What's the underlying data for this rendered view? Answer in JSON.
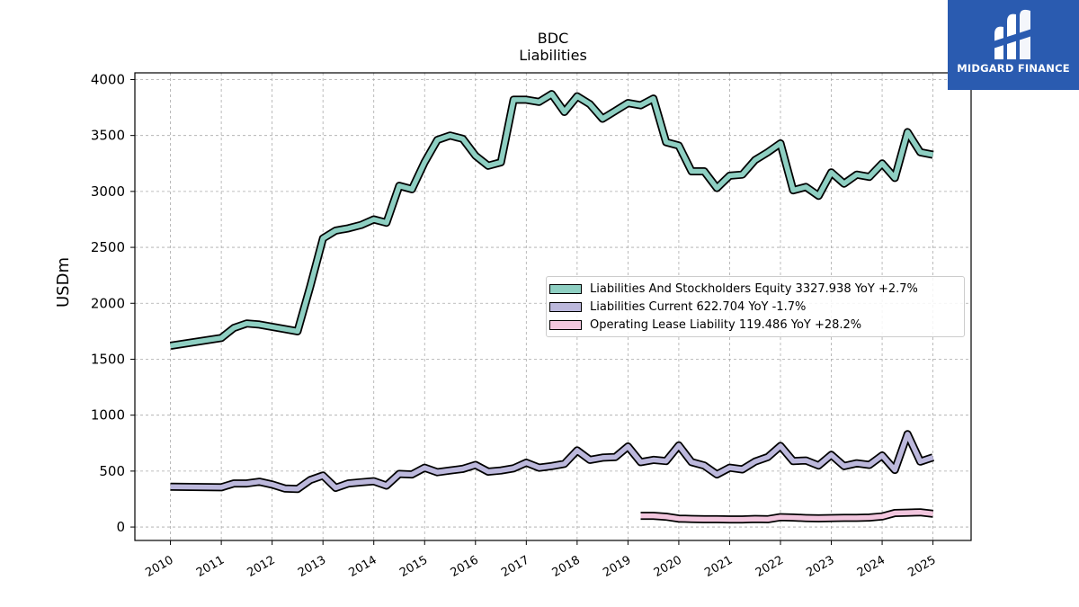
{
  "header": {
    "ticker": "BDC",
    "subtitle": "Liabilities"
  },
  "logo": {
    "text": "MIDGARD FINANCE",
    "icon": "midgard-logo-icon",
    "bg_color": "#2a5bb0"
  },
  "chart_data": {
    "type": "line",
    "title": "BDC",
    "subtitle": "Liabilities",
    "ylabel": "USDm",
    "xlabel": "",
    "xlim": [
      2009.3,
      2025.75
    ],
    "ylim": [
      -120,
      4060
    ],
    "x_ticks": [
      "2010",
      "2011",
      "2012",
      "2013",
      "2014",
      "2015",
      "2016",
      "2017",
      "2018",
      "2019",
      "2020",
      "2021",
      "2022",
      "2023",
      "2024",
      "2025"
    ],
    "y_ticks": [
      0,
      500,
      1000,
      1500,
      2000,
      2500,
      3000,
      3500,
      4000
    ],
    "grid": true,
    "legend_position": "right-middle",
    "series": [
      {
        "name": "Liabilities And Stockholders Equity",
        "legend_label": "Liabilities And Stockholders Equity  3327.938 YoY +2.7%",
        "color": "#8ecfc2",
        "points": [
          [
            2010.0,
            1620
          ],
          [
            2011.0,
            1690
          ],
          [
            2011.25,
            1780
          ],
          [
            2011.5,
            1820
          ],
          [
            2011.75,
            1810
          ],
          [
            2012.0,
            1790
          ],
          [
            2012.25,
            1770
          ],
          [
            2012.5,
            1750
          ],
          [
            2012.75,
            2150
          ],
          [
            2013.0,
            2580
          ],
          [
            2013.25,
            2650
          ],
          [
            2013.5,
            2670
          ],
          [
            2013.75,
            2700
          ],
          [
            2014.0,
            2750
          ],
          [
            2014.25,
            2720
          ],
          [
            2014.5,
            3050
          ],
          [
            2014.75,
            3020
          ],
          [
            2015.0,
            3260
          ],
          [
            2015.25,
            3460
          ],
          [
            2015.5,
            3500
          ],
          [
            2015.75,
            3470
          ],
          [
            2016.0,
            3320
          ],
          [
            2016.25,
            3230
          ],
          [
            2016.5,
            3260
          ],
          [
            2016.75,
            3820
          ],
          [
            2017.0,
            3820
          ],
          [
            2017.25,
            3800
          ],
          [
            2017.5,
            3870
          ],
          [
            2017.75,
            3710
          ],
          [
            2018.0,
            3850
          ],
          [
            2018.25,
            3780
          ],
          [
            2018.5,
            3650
          ],
          [
            2018.75,
            3720
          ],
          [
            2019.0,
            3790
          ],
          [
            2019.25,
            3770
          ],
          [
            2019.5,
            3830
          ],
          [
            2019.75,
            3440
          ],
          [
            2020.0,
            3410
          ],
          [
            2020.25,
            3180
          ],
          [
            2020.5,
            3180
          ],
          [
            2020.75,
            3030
          ],
          [
            2021.0,
            3140
          ],
          [
            2021.25,
            3150
          ],
          [
            2021.5,
            3280
          ],
          [
            2021.75,
            3350
          ],
          [
            2022.0,
            3430
          ],
          [
            2022.25,
            3010
          ],
          [
            2022.5,
            3040
          ],
          [
            2022.75,
            2960
          ],
          [
            2023.0,
            3170
          ],
          [
            2023.25,
            3070
          ],
          [
            2023.5,
            3150
          ],
          [
            2023.75,
            3130
          ],
          [
            2024.0,
            3250
          ],
          [
            2024.25,
            3120
          ],
          [
            2024.5,
            3530
          ],
          [
            2024.75,
            3350
          ],
          [
            2025.0,
            3328
          ]
        ]
      },
      {
        "name": "Liabilities Current",
        "legend_label": "Liabilities Current  622.704 YoY -1.7%",
        "color": "#bcb8dc",
        "points": [
          [
            2010.0,
            360
          ],
          [
            2011.0,
            355
          ],
          [
            2011.25,
            390
          ],
          [
            2011.5,
            390
          ],
          [
            2011.75,
            405
          ],
          [
            2012.0,
            380
          ],
          [
            2012.25,
            345
          ],
          [
            2012.5,
            340
          ],
          [
            2012.75,
            420
          ],
          [
            2013.0,
            460
          ],
          [
            2013.25,
            350
          ],
          [
            2013.5,
            390
          ],
          [
            2013.75,
            400
          ],
          [
            2014.0,
            410
          ],
          [
            2014.25,
            370
          ],
          [
            2014.5,
            475
          ],
          [
            2014.75,
            470
          ],
          [
            2015.0,
            530
          ],
          [
            2015.25,
            490
          ],
          [
            2015.5,
            505
          ],
          [
            2015.75,
            520
          ],
          [
            2016.0,
            555
          ],
          [
            2016.25,
            495
          ],
          [
            2016.5,
            505
          ],
          [
            2016.75,
            525
          ],
          [
            2017.0,
            575
          ],
          [
            2017.25,
            530
          ],
          [
            2017.5,
            545
          ],
          [
            2017.75,
            565
          ],
          [
            2018.0,
            685
          ],
          [
            2018.25,
            600
          ],
          [
            2018.5,
            620
          ],
          [
            2018.75,
            625
          ],
          [
            2019.0,
            720
          ],
          [
            2019.25,
            580
          ],
          [
            2019.5,
            600
          ],
          [
            2019.75,
            590
          ],
          [
            2020.0,
            730
          ],
          [
            2020.25,
            580
          ],
          [
            2020.5,
            550
          ],
          [
            2020.75,
            470
          ],
          [
            2021.0,
            530
          ],
          [
            2021.25,
            515
          ],
          [
            2021.5,
            585
          ],
          [
            2021.75,
            625
          ],
          [
            2022.0,
            725
          ],
          [
            2022.25,
            590
          ],
          [
            2022.5,
            595
          ],
          [
            2022.75,
            550
          ],
          [
            2023.0,
            645
          ],
          [
            2023.25,
            545
          ],
          [
            2023.5,
            570
          ],
          [
            2023.75,
            555
          ],
          [
            2024.0,
            640
          ],
          [
            2024.25,
            510
          ],
          [
            2024.5,
            830
          ],
          [
            2024.75,
            585
          ],
          [
            2025.0,
            623
          ]
        ]
      },
      {
        "name": "Operating Lease Liability",
        "legend_label": "Operating Lease Liability  119.486 YoY +28.2%",
        "color": "#f2c6de",
        "points": [
          [
            2019.25,
            100
          ],
          [
            2019.5,
            100
          ],
          [
            2019.75,
            92
          ],
          [
            2020.0,
            75
          ],
          [
            2020.25,
            72
          ],
          [
            2020.5,
            70
          ],
          [
            2020.75,
            70
          ],
          [
            2021.0,
            68
          ],
          [
            2021.25,
            68
          ],
          [
            2021.5,
            72
          ],
          [
            2021.75,
            70
          ],
          [
            2022.0,
            88
          ],
          [
            2022.25,
            85
          ],
          [
            2022.5,
            80
          ],
          [
            2022.75,
            78
          ],
          [
            2023.0,
            80
          ],
          [
            2023.25,
            82
          ],
          [
            2023.5,
            82
          ],
          [
            2023.75,
            85
          ],
          [
            2024.0,
            95
          ],
          [
            2024.25,
            125
          ],
          [
            2024.5,
            128
          ],
          [
            2024.75,
            132
          ],
          [
            2025.0,
            119
          ]
        ]
      }
    ]
  }
}
